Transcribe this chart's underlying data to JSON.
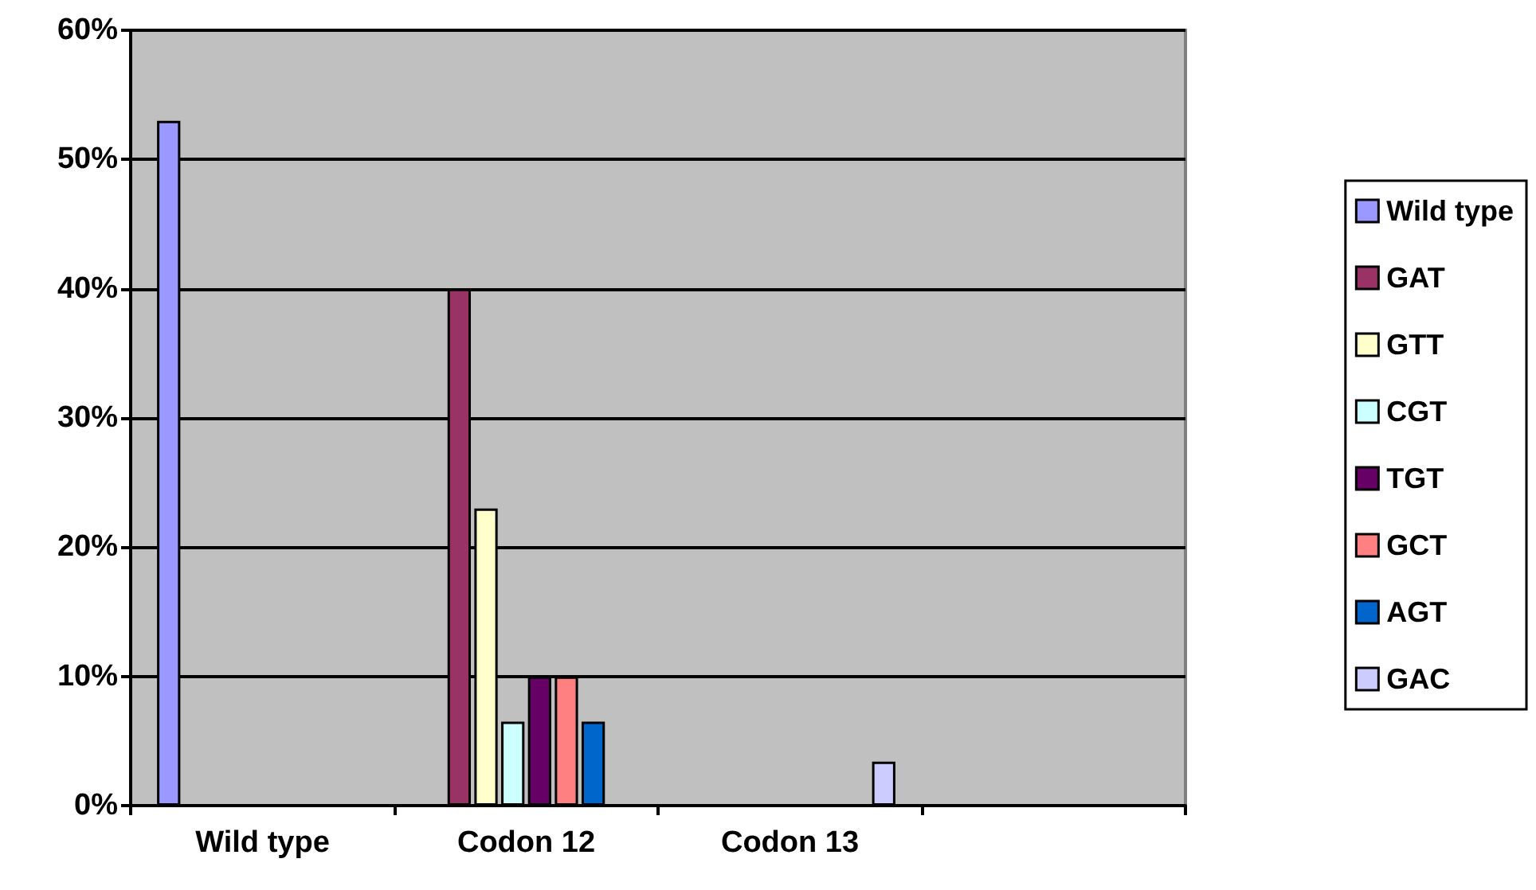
{
  "chart_data": {
    "type": "bar",
    "categories": [
      "Wild type",
      "Codon 12",
      "Codon 13",
      null
    ],
    "series": [
      {
        "name": "Wild type",
        "color": "#9999ff",
        "values": [
          53,
          null,
          null,
          null
        ]
      },
      {
        "name": "GAT",
        "color": "#993366",
        "values": [
          null,
          40,
          null,
          null
        ]
      },
      {
        "name": "GTT",
        "color": "#ffffcc",
        "values": [
          null,
          23,
          null,
          null
        ]
      },
      {
        "name": "CGT",
        "color": "#ccffff",
        "values": [
          null,
          6.5,
          null,
          null
        ]
      },
      {
        "name": "TGT",
        "color": "#660066",
        "values": [
          null,
          10,
          null,
          null
        ]
      },
      {
        "name": "GCT",
        "color": "#ff8080",
        "values": [
          null,
          10,
          null,
          null
        ]
      },
      {
        "name": "AGT",
        "color": "#0066cc",
        "values": [
          null,
          6.5,
          null,
          null
        ]
      },
      {
        "name": "GAC",
        "color": "#ccccff",
        "values": [
          null,
          null,
          3.4,
          null
        ]
      }
    ],
    "ylim": [
      0,
      60
    ],
    "yticks": [
      {
        "value": 0,
        "label": "0%"
      },
      {
        "value": 10,
        "label": "10%"
      },
      {
        "value": 20,
        "label": "20%"
      },
      {
        "value": 30,
        "label": "30%"
      },
      {
        "value": 40,
        "label": "40%"
      },
      {
        "value": 50,
        "label": "50%"
      },
      {
        "value": 60,
        "label": "60%"
      }
    ],
    "grid": "y",
    "legend": "right"
  }
}
